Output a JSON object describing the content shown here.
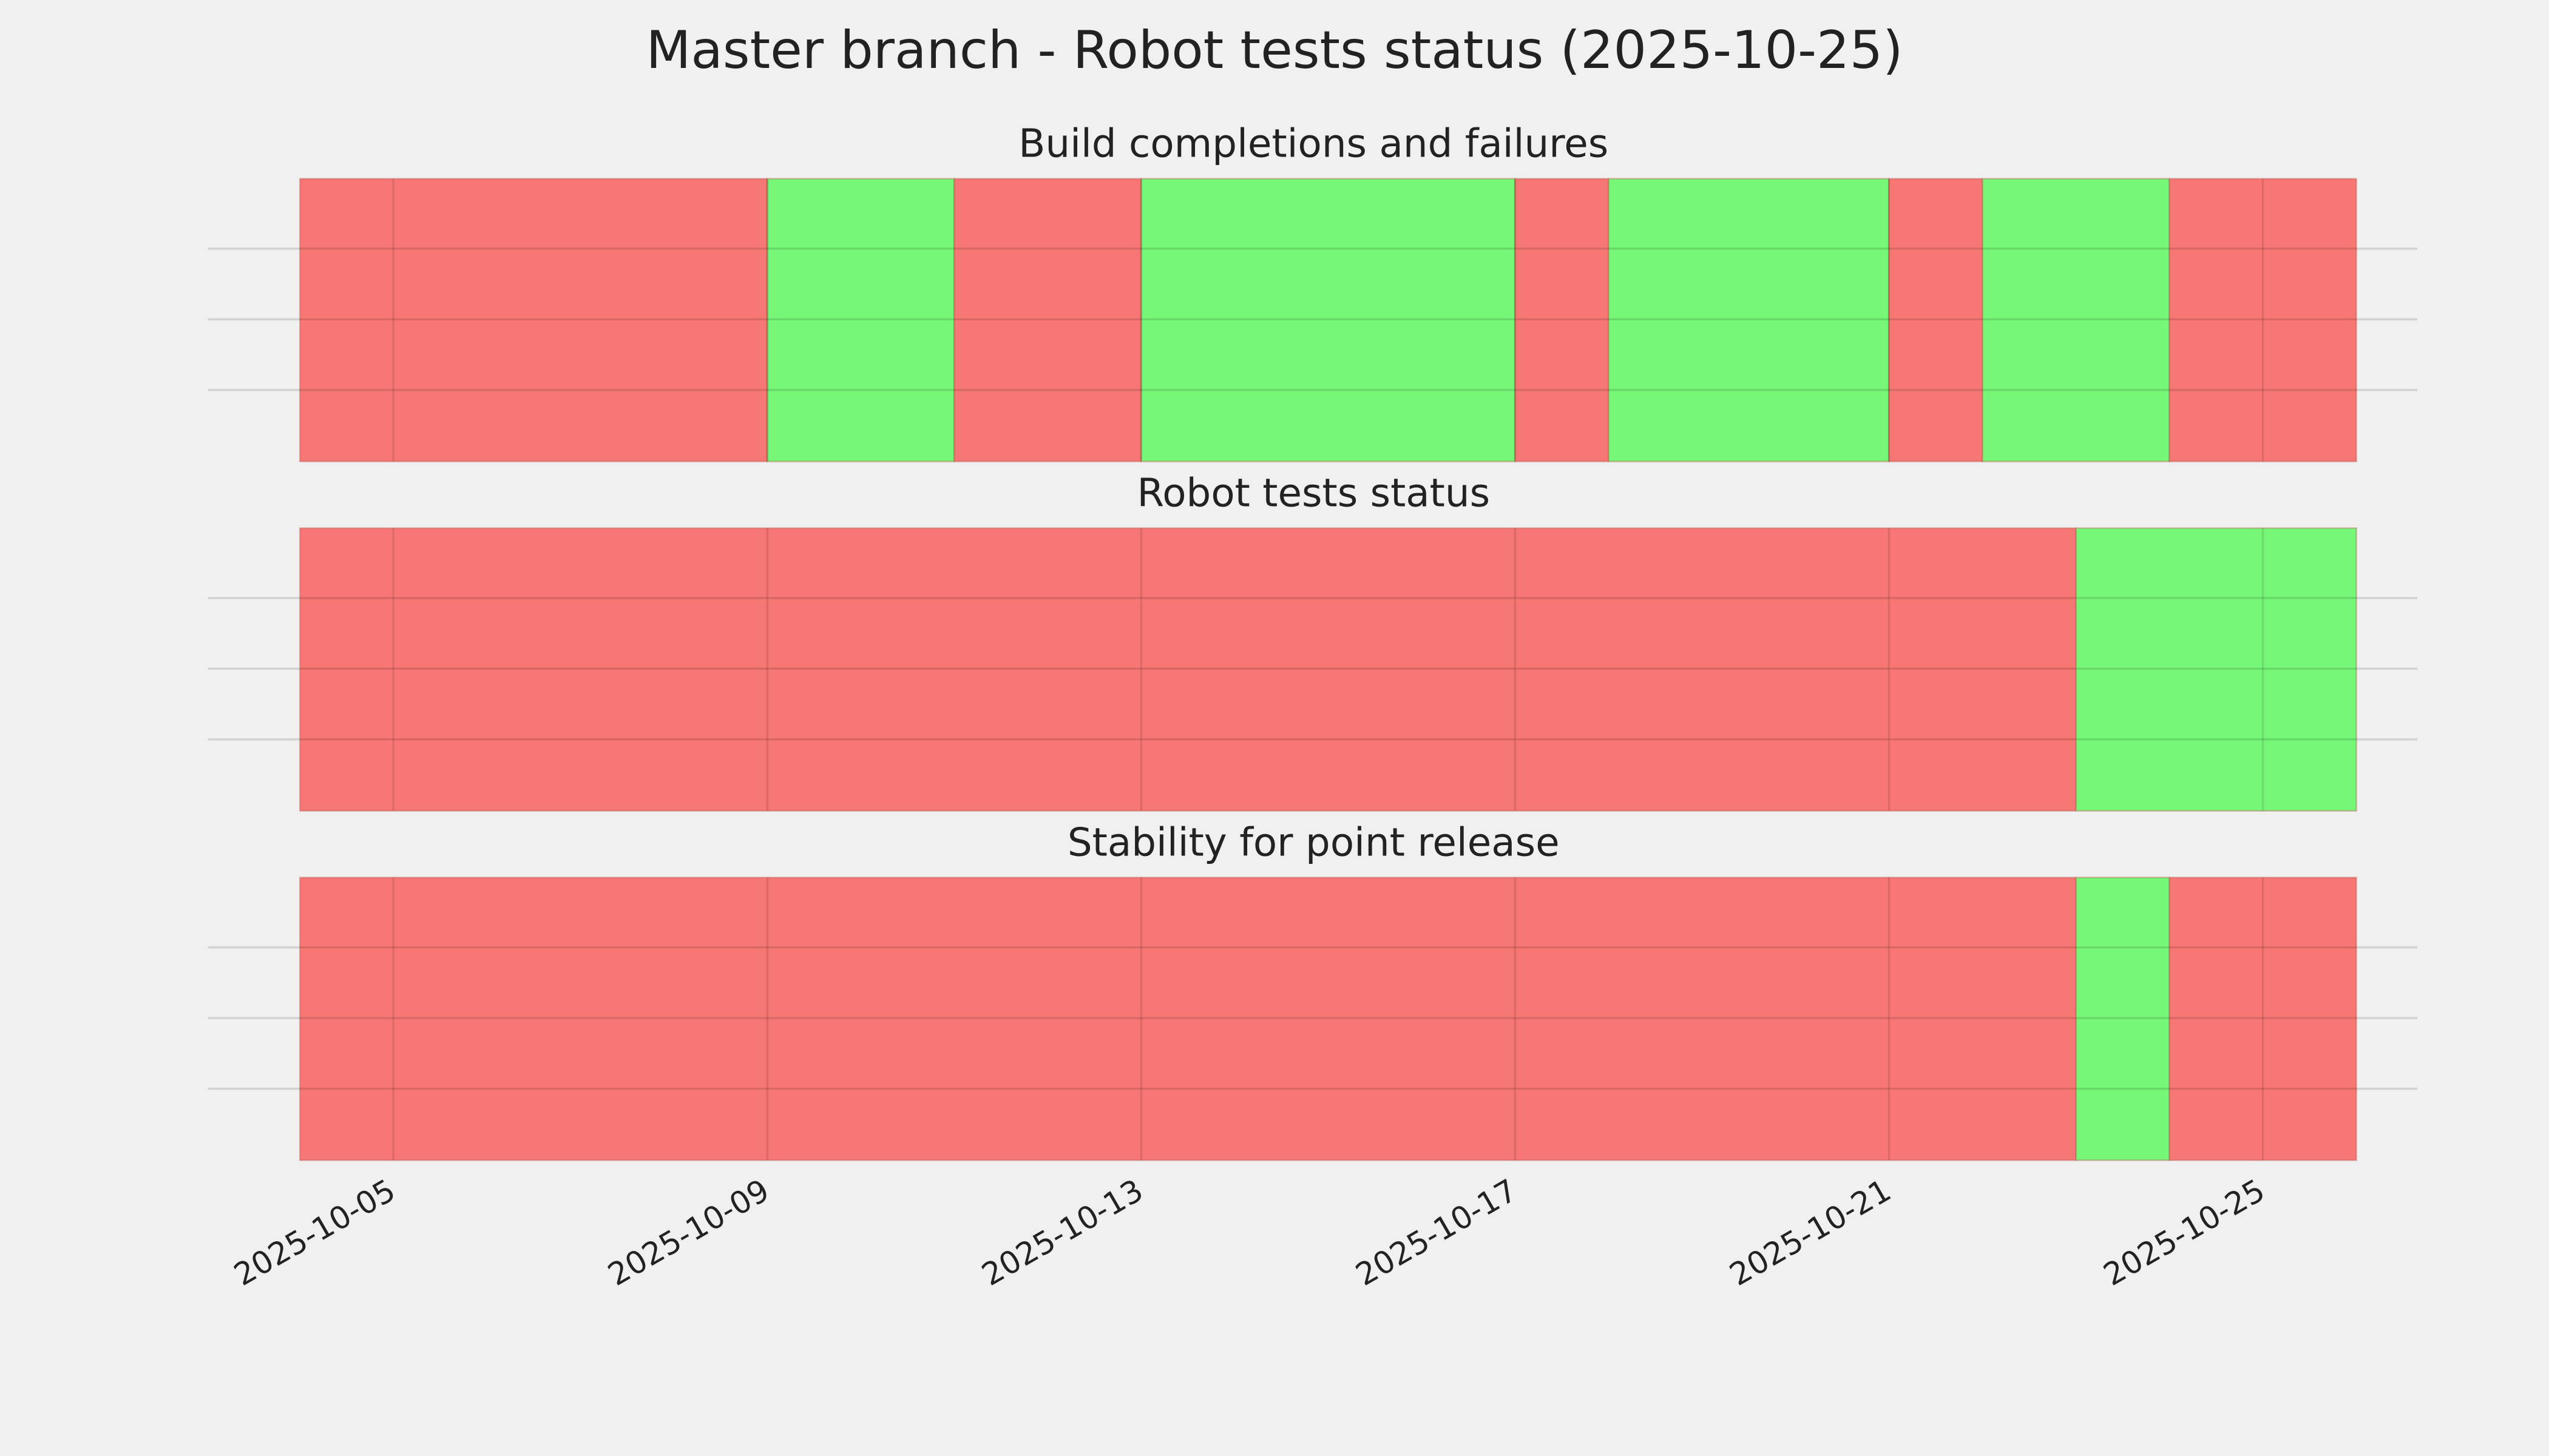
{
  "title": "Master branch - Robot tests status (2025-10-25)",
  "chart_data": [
    {
      "type": "timeline",
      "title": "Build completions and failures",
      "xlim": [
        "2025-10-04",
        "2025-10-26"
      ],
      "segments": [
        {
          "start": "2025-10-04",
          "end": "2025-10-09",
          "color": "#f77774"
        },
        {
          "start": "2025-10-09",
          "end": "2025-10-11",
          "color": "#76f777"
        },
        {
          "start": "2025-10-11",
          "end": "2025-10-13",
          "color": "#f77774"
        },
        {
          "start": "2025-10-13",
          "end": "2025-10-17",
          "color": "#76f777"
        },
        {
          "start": "2025-10-17",
          "end": "2025-10-18",
          "color": "#f77774"
        },
        {
          "start": "2025-10-18",
          "end": "2025-10-21",
          "color": "#76f777"
        },
        {
          "start": "2025-10-21",
          "end": "2025-10-22",
          "color": "#f77774"
        },
        {
          "start": "2025-10-22",
          "end": "2025-10-24",
          "color": "#76f777"
        },
        {
          "start": "2025-10-24",
          "end": "2025-10-26",
          "color": "#f77774"
        }
      ]
    },
    {
      "type": "timeline",
      "title": "Robot tests status",
      "xlim": [
        "2025-10-04",
        "2025-10-26"
      ],
      "segments": [
        {
          "start": "2025-10-04",
          "end": "2025-10-23",
          "color": "#f77774"
        },
        {
          "start": "2025-10-23",
          "end": "2025-10-26",
          "color": "#76f777"
        }
      ]
    },
    {
      "type": "timeline",
      "title": "Stability for point release",
      "xlim": [
        "2025-10-04",
        "2025-10-26"
      ],
      "xticks": [
        "2025-10-05",
        "2025-10-09",
        "2025-10-13",
        "2025-10-17",
        "2025-10-21",
        "2025-10-25"
      ],
      "segments": [
        {
          "start": "2025-10-04",
          "end": "2025-10-23",
          "color": "#f77774"
        },
        {
          "start": "2025-10-23",
          "end": "2025-10-24",
          "color": "#76f777"
        },
        {
          "start": "2025-10-24",
          "end": "2025-10-26",
          "color": "#f77774"
        }
      ]
    }
  ]
}
